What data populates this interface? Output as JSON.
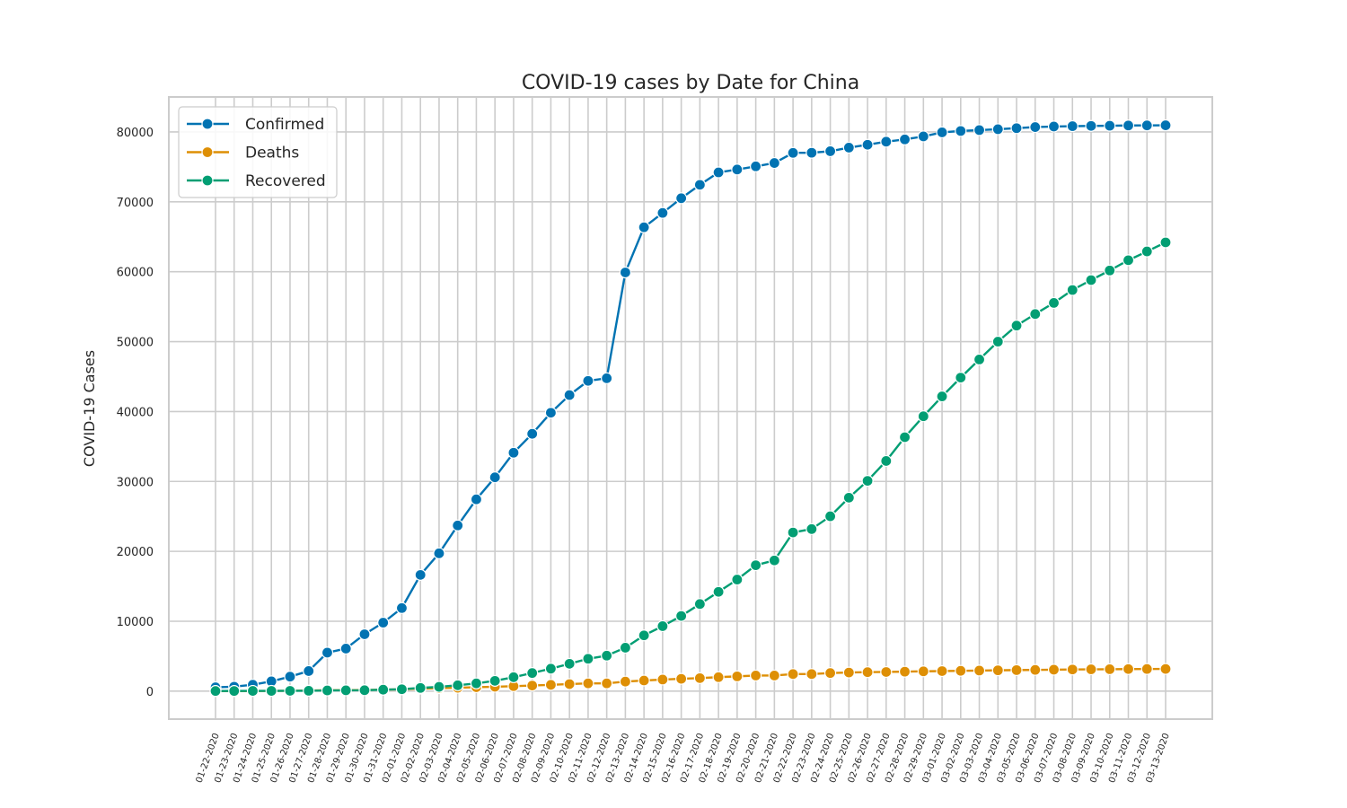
{
  "chart_data": {
    "type": "line",
    "title": "COVID-19 cases by Date for China",
    "xlabel": "",
    "ylabel": "COVID-19 Cases",
    "ylim": [
      -4000,
      85000
    ],
    "yticks": [
      0,
      10000,
      20000,
      30000,
      40000,
      50000,
      60000,
      70000,
      80000
    ],
    "ytick_labels": [
      "0",
      "10000",
      "20000",
      "30000",
      "40000",
      "50000",
      "60000",
      "70000",
      "80000"
    ],
    "grid": true,
    "legend_position": "top-left",
    "x": [
      "01-22-2020",
      "01-23-2020",
      "01-24-2020",
      "01-25-2020",
      "01-26-2020",
      "01-27-2020",
      "01-28-2020",
      "01-29-2020",
      "01-30-2020",
      "01-31-2020",
      "02-01-2020",
      "02-02-2020",
      "02-03-2020",
      "02-04-2020",
      "02-05-2020",
      "02-06-2020",
      "02-07-2020",
      "02-08-2020",
      "02-09-2020",
      "02-10-2020",
      "02-11-2020",
      "02-12-2020",
      "02-13-2020",
      "02-14-2020",
      "02-15-2020",
      "02-16-2020",
      "02-17-2020",
      "02-18-2020",
      "02-19-2020",
      "02-20-2020",
      "02-21-2020",
      "02-22-2020",
      "02-23-2020",
      "02-24-2020",
      "02-25-2020",
      "02-26-2020",
      "02-27-2020",
      "02-28-2020",
      "02-29-2020",
      "03-01-2020",
      "03-02-2020",
      "03-03-2020",
      "03-04-2020",
      "03-05-2020",
      "03-06-2020",
      "03-07-2020",
      "03-08-2020",
      "03-09-2020",
      "03-10-2020",
      "03-11-2020",
      "03-12-2020",
      "03-13-2020"
    ],
    "series": [
      {
        "name": "Confirmed",
        "color": "#0173b2",
        "values": [
          548,
          643,
          920,
          1406,
          2075,
          2877,
          5509,
          6087,
          8141,
          9802,
          11891,
          16630,
          19716,
          23707,
          27440,
          30587,
          34110,
          36814,
          39829,
          42354,
          44386,
          44759,
          59895,
          66358,
          68413,
          70513,
          72434,
          74211,
          74619,
          75077,
          75550,
          77001,
          77022,
          77241,
          77754,
          78166,
          78600,
          78928,
          79356,
          79932,
          80136,
          80261,
          80386,
          80537,
          80690,
          80770,
          80823,
          80860,
          80887,
          80921,
          80932,
          80945
        ]
      },
      {
        "name": "Deaths",
        "color": "#de8f05",
        "values": [
          17,
          18,
          26,
          42,
          56,
          82,
          131,
          133,
          171,
          213,
          259,
          361,
          425,
          490,
          562,
          632,
          717,
          804,
          904,
          1011,
          1112,
          1117,
          1369,
          1521,
          1663,
          1766,
          1864,
          2003,
          2116,
          2238,
          2238,
          2443,
          2445,
          2595,
          2665,
          2717,
          2746,
          2790,
          2837,
          2872,
          2914,
          2947,
          2983,
          3015,
          3044,
          3072,
          3100,
          3123,
          3139,
          3161,
          3172,
          3180
        ]
      },
      {
        "name": "Recovered",
        "color": "#029e73",
        "values": [
          28,
          30,
          36,
          39,
          49,
          58,
          101,
          120,
          135,
          214,
          275,
          463,
          614,
          843,
          1115,
          1477,
          1999,
          2596,
          3219,
          3918,
          4636,
          5082,
          6217,
          7977,
          9298,
          10755,
          12462,
          14206,
          15962,
          18014,
          18704,
          22699,
          23187,
          25015,
          27676,
          30084,
          32930,
          36329,
          39320,
          42162,
          44854,
          47450,
          50001,
          52292,
          53944,
          55539,
          57388,
          58804,
          60181,
          61644,
          62901,
          64196
        ]
      }
    ]
  }
}
